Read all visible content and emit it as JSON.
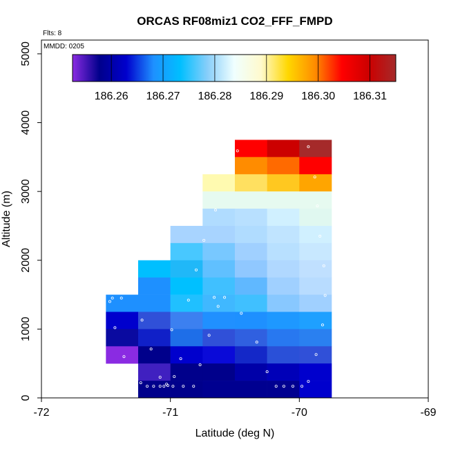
{
  "chart_data": {
    "type": "heatmap",
    "title": "ORCAS RF08miz1 CO2_FFF_FMPD",
    "flts_label": "Flts: 8",
    "mmdd_label": "MMDD: 0205",
    "xlabel": "Latitude (deg N)",
    "ylabel": "Altitude (m)",
    "xlim": [
      -72,
      -69
    ],
    "ylim": [
      0,
      5200
    ],
    "x_ticks": [
      -72,
      -71,
      -70,
      -69
    ],
    "x_tick_labels": [
      "-72",
      "-71",
      "-70",
      "-69"
    ],
    "y_ticks": [
      0,
      1000,
      2000,
      3000,
      4000,
      5000
    ],
    "y_tick_labels": [
      "0",
      "1000",
      "2000",
      "3000",
      "4000",
      "5000"
    ],
    "colorbar": {
      "min": 186.2525,
      "max": 186.315,
      "tick_values": [
        186.26,
        186.27,
        186.28,
        186.29,
        186.3,
        186.31
      ],
      "tick_labels": [
        "186.26",
        "186.27",
        "186.28",
        "186.29",
        "186.30",
        "186.31"
      ],
      "colors": [
        "#8a2be2",
        "#00008b",
        "#0000cd",
        "#1e90ff",
        "#00bfff",
        "#87cefa",
        "#f0ffff",
        "#fffacd",
        "#ffd700",
        "#ff8c00",
        "#ff0000",
        "#cc0000",
        "#a52a2a"
      ]
    },
    "bin_width_deg": 0.25,
    "bin_height_m": 250,
    "cells": [
      {
        "lat": -71.375,
        "alt": 1375,
        "color": "#1e90ff"
      },
      {
        "lat": -71.375,
        "alt": 1125,
        "color": "#0000cd"
      },
      {
        "lat": -71.375,
        "alt": 875,
        "color": "#0a0aa0"
      },
      {
        "lat": -71.375,
        "alt": 625,
        "color": "#8a2be2"
      },
      {
        "lat": -71.125,
        "alt": 1875,
        "color": "#00bfff"
      },
      {
        "lat": -71.125,
        "alt": 1625,
        "color": "#1e90ff"
      },
      {
        "lat": -71.125,
        "alt": 1375,
        "color": "#1e90ff"
      },
      {
        "lat": -71.125,
        "alt": 1125,
        "color": "#3050d8"
      },
      {
        "lat": -71.125,
        "alt": 875,
        "color": "#1020c8"
      },
      {
        "lat": -71.125,
        "alt": 625,
        "color": "#00008b"
      },
      {
        "lat": -71.125,
        "alt": 375,
        "color": "#4020c0"
      },
      {
        "lat": -71.125,
        "alt": 125,
        "color": "#00008b"
      },
      {
        "lat": -70.875,
        "alt": 2375,
        "color": "#a8d4ff"
      },
      {
        "lat": -70.875,
        "alt": 2125,
        "color": "#48c8ff"
      },
      {
        "lat": -70.875,
        "alt": 1875,
        "color": "#20b8f8"
      },
      {
        "lat": -70.875,
        "alt": 1625,
        "color": "#00c0ff"
      },
      {
        "lat": -70.875,
        "alt": 1375,
        "color": "#20c0ff"
      },
      {
        "lat": -70.875,
        "alt": 1125,
        "color": "#3c80f0"
      },
      {
        "lat": -70.875,
        "alt": 875,
        "color": "#1e6ee8"
      },
      {
        "lat": -70.875,
        "alt": 625,
        "color": "#0000cd"
      },
      {
        "lat": -70.875,
        "alt": 375,
        "color": "#00008b"
      },
      {
        "lat": -70.875,
        "alt": 125,
        "color": "#00008b"
      },
      {
        "lat": -70.625,
        "alt": 3125,
        "color": "#fffab0"
      },
      {
        "lat": -70.625,
        "alt": 2875,
        "color": "#e6faf0"
      },
      {
        "lat": -70.625,
        "alt": 2625,
        "color": "#b0dcff"
      },
      {
        "lat": -70.625,
        "alt": 2375,
        "color": "#a8d4ff"
      },
      {
        "lat": -70.625,
        "alt": 2125,
        "color": "#78c8ff"
      },
      {
        "lat": -70.625,
        "alt": 1875,
        "color": "#60c0ff"
      },
      {
        "lat": -70.625,
        "alt": 1625,
        "color": "#40c0ff"
      },
      {
        "lat": -70.625,
        "alt": 1375,
        "color": "#40b8ff"
      },
      {
        "lat": -70.625,
        "alt": 1125,
        "color": "#2090ff"
      },
      {
        "lat": -70.625,
        "alt": 875,
        "color": "#3050d8"
      },
      {
        "lat": -70.625,
        "alt": 625,
        "color": "#0a0ad8"
      },
      {
        "lat": -70.625,
        "alt": 375,
        "color": "#00008b"
      },
      {
        "lat": -70.625,
        "alt": 125,
        "color": "#000090"
      },
      {
        "lat": -70.375,
        "alt": 3625,
        "color": "#ff0000"
      },
      {
        "lat": -70.375,
        "alt": 3375,
        "color": "#ff8c00"
      },
      {
        "lat": -70.375,
        "alt": 3125,
        "color": "#ffe060"
      },
      {
        "lat": -70.375,
        "alt": 2875,
        "color": "#e6faf0"
      },
      {
        "lat": -70.375,
        "alt": 2625,
        "color": "#b8e0ff"
      },
      {
        "lat": -70.375,
        "alt": 2375,
        "color": "#b0dcff"
      },
      {
        "lat": -70.375,
        "alt": 2125,
        "color": "#a0d0ff"
      },
      {
        "lat": -70.375,
        "alt": 1875,
        "color": "#90c8ff"
      },
      {
        "lat": -70.375,
        "alt": 1625,
        "color": "#60b8ff"
      },
      {
        "lat": -70.375,
        "alt": 1375,
        "color": "#40c0ff"
      },
      {
        "lat": -70.375,
        "alt": 1125,
        "color": "#1e90ff"
      },
      {
        "lat": -70.375,
        "alt": 875,
        "color": "#3060e0"
      },
      {
        "lat": -70.375,
        "alt": 625,
        "color": "#1428c8"
      },
      {
        "lat": -70.375,
        "alt": 375,
        "color": "#0000a8"
      },
      {
        "lat": -70.375,
        "alt": 125,
        "color": "#000090"
      },
      {
        "lat": -70.125,
        "alt": 3625,
        "color": "#cc0000"
      },
      {
        "lat": -70.125,
        "alt": 3375,
        "color": "#ff6a00"
      },
      {
        "lat": -70.125,
        "alt": 3125,
        "color": "#ffc820"
      },
      {
        "lat": -70.125,
        "alt": 2875,
        "color": "#e6faf0"
      },
      {
        "lat": -70.125,
        "alt": 2625,
        "color": "#d0f0ff"
      },
      {
        "lat": -70.125,
        "alt": 2375,
        "color": "#c0e4ff"
      },
      {
        "lat": -70.125,
        "alt": 2125,
        "color": "#b8e0ff"
      },
      {
        "lat": -70.125,
        "alt": 1875,
        "color": "#b0d8ff"
      },
      {
        "lat": -70.125,
        "alt": 1625,
        "color": "#a0d0ff"
      },
      {
        "lat": -70.125,
        "alt": 1375,
        "color": "#88c8ff"
      },
      {
        "lat": -70.125,
        "alt": 1125,
        "color": "#1e98ff"
      },
      {
        "lat": -70.125,
        "alt": 875,
        "color": "#2878f0"
      },
      {
        "lat": -70.125,
        "alt": 625,
        "color": "#2a50d8"
      },
      {
        "lat": -70.125,
        "alt": 375,
        "color": "#0000b8"
      },
      {
        "lat": -70.125,
        "alt": 125,
        "color": "#000090"
      },
      {
        "lat": -69.875,
        "alt": 3625,
        "color": "#a52a2a"
      },
      {
        "lat": -69.875,
        "alt": 3375,
        "color": "#ff0000"
      },
      {
        "lat": -69.875,
        "alt": 3125,
        "color": "#ffa500"
      },
      {
        "lat": -69.875,
        "alt": 2875,
        "color": "#e6faf0"
      },
      {
        "lat": -69.875,
        "alt": 2625,
        "color": "#e0f8f0"
      },
      {
        "lat": -69.875,
        "alt": 2375,
        "color": "#d0f0ff"
      },
      {
        "lat": -69.875,
        "alt": 2125,
        "color": "#c8e8ff"
      },
      {
        "lat": -69.875,
        "alt": 1875,
        "color": "#c0e0ff"
      },
      {
        "lat": -69.875,
        "alt": 1625,
        "color": "#b8dcff"
      },
      {
        "lat": -69.875,
        "alt": 1375,
        "color": "#a0d0ff"
      },
      {
        "lat": -69.875,
        "alt": 1125,
        "color": "#1ea0ff"
      },
      {
        "lat": -69.875,
        "alt": 875,
        "color": "#2a80f0"
      },
      {
        "lat": -69.875,
        "alt": 625,
        "color": "#3050d8"
      },
      {
        "lat": -69.875,
        "alt": 375,
        "color": "#0000cd"
      },
      {
        "lat": -69.875,
        "alt": 125,
        "color": "#0000cd"
      }
    ],
    "points": [
      {
        "lat": -71.45,
        "alt": 1450
      },
      {
        "lat": -71.47,
        "alt": 1400
      },
      {
        "lat": -71.38,
        "alt": 1450
      },
      {
        "lat": -71.43,
        "alt": 1020
      },
      {
        "lat": -71.36,
        "alt": 600
      },
      {
        "lat": -71.22,
        "alt": 1130
      },
      {
        "lat": -71.15,
        "alt": 710
      },
      {
        "lat": -71.08,
        "alt": 300
      },
      {
        "lat": -71.23,
        "alt": 220
      },
      {
        "lat": -71.18,
        "alt": 170
      },
      {
        "lat": -71.13,
        "alt": 170
      },
      {
        "lat": -71.08,
        "alt": 170
      },
      {
        "lat": -71.05,
        "alt": 170
      },
      {
        "lat": -71.03,
        "alt": 200
      },
      {
        "lat": -71.02,
        "alt": 180
      },
      {
        "lat": -70.98,
        "alt": 170
      },
      {
        "lat": -70.97,
        "alt": 310
      },
      {
        "lat": -70.92,
        "alt": 570
      },
      {
        "lat": -70.9,
        "alt": 170
      },
      {
        "lat": -70.82,
        "alt": 170
      },
      {
        "lat": -70.99,
        "alt": 990
      },
      {
        "lat": -70.86,
        "alt": 1420
      },
      {
        "lat": -70.8,
        "alt": 1860
      },
      {
        "lat": -70.74,
        "alt": 2290
      },
      {
        "lat": -70.77,
        "alt": 480
      },
      {
        "lat": -70.7,
        "alt": 910
      },
      {
        "lat": -70.63,
        "alt": 1330
      },
      {
        "lat": -70.66,
        "alt": 1460
      },
      {
        "lat": -70.58,
        "alt": 1460
      },
      {
        "lat": -70.48,
        "alt": 3590
      },
      {
        "lat": -70.65,
        "alt": 2730
      },
      {
        "lat": -70.45,
        "alt": 1230
      },
      {
        "lat": -70.33,
        "alt": 810
      },
      {
        "lat": -70.25,
        "alt": 380
      },
      {
        "lat": -70.18,
        "alt": 170
      },
      {
        "lat": -70.12,
        "alt": 170
      },
      {
        "lat": -70.05,
        "alt": 170
      },
      {
        "lat": -69.98,
        "alt": 170
      },
      {
        "lat": -69.93,
        "alt": 240
      },
      {
        "lat": -69.87,
        "alt": 630
      },
      {
        "lat": -69.82,
        "alt": 1060
      },
      {
        "lat": -69.8,
        "alt": 1490
      },
      {
        "lat": -69.81,
        "alt": 1920
      },
      {
        "lat": -69.84,
        "alt": 2350
      },
      {
        "lat": -69.86,
        "alt": 2790
      },
      {
        "lat": -69.88,
        "alt": 3210
      },
      {
        "lat": -69.93,
        "alt": 3650
      }
    ]
  }
}
